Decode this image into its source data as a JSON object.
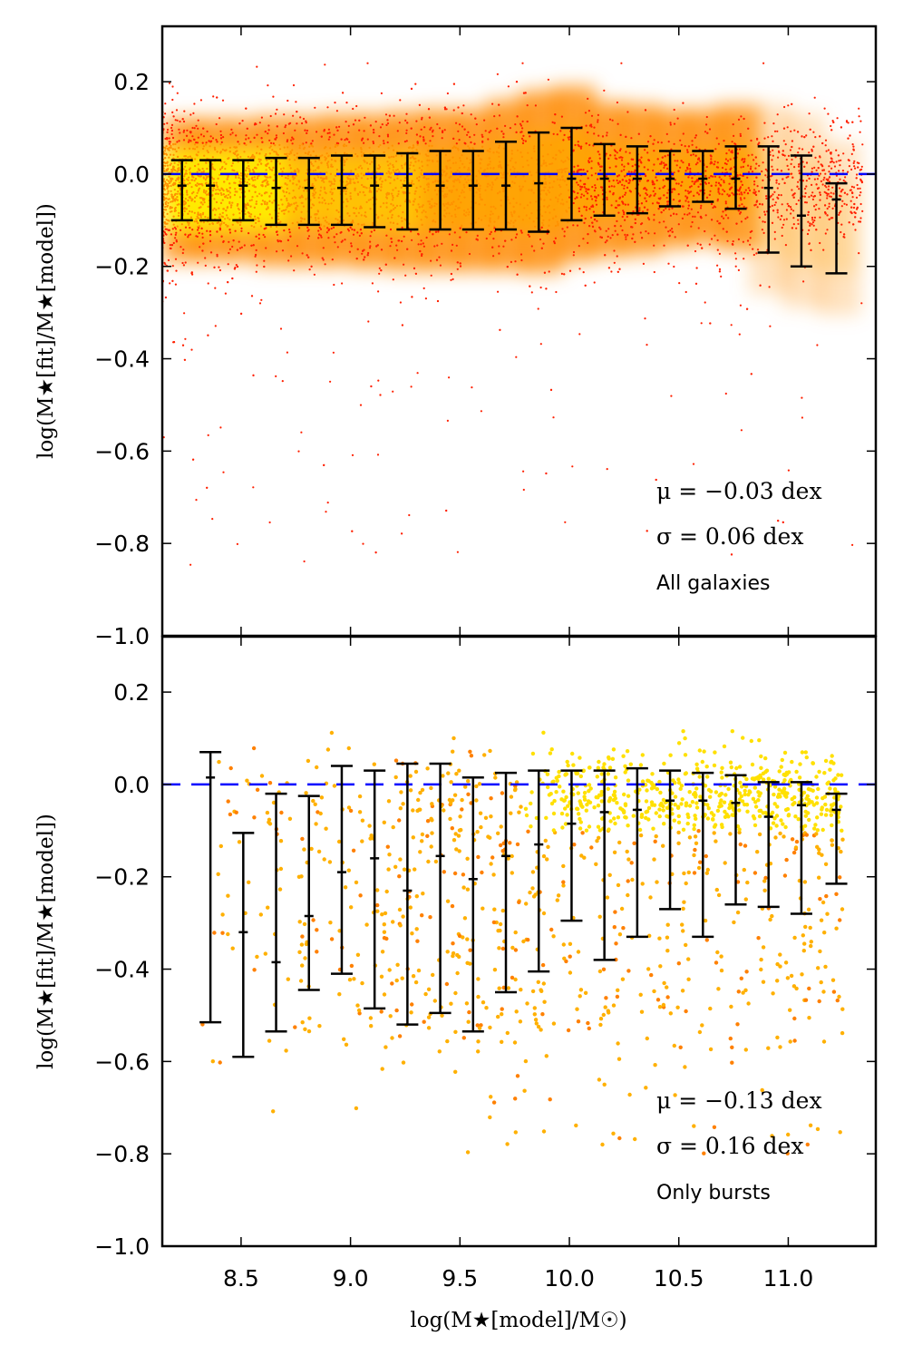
{
  "chart_data": [
    {
      "type": "scatter",
      "panel": "top",
      "xlim": [
        8.14,
        11.4
      ],
      "ylim": [
        -1.0,
        0.32
      ],
      "xticks": [
        "8.5",
        "9.0",
        "9.5",
        "10.0",
        "10.5",
        "11.0"
      ],
      "xtick_values": [
        8.5,
        9.0,
        9.5,
        10.0,
        10.5,
        11.0
      ],
      "yticks": [
        "0.2",
        "0.0",
        "−0.2",
        "−0.4",
        "−0.6",
        "−0.8",
        "−1.0"
      ],
      "ytick_values": [
        0.2,
        0.0,
        -0.2,
        -0.4,
        -0.6,
        -0.8,
        -1.0
      ],
      "ylabel": "log(M★[fit]/M★[model])",
      "grid": false,
      "reference_line_y": 0.0,
      "annotations": [
        "μ = −0.03 dex",
        "σ = 0.06 dex",
        "All galaxies"
      ],
      "errorbars": {
        "x": [
          8.23,
          8.36,
          8.51,
          8.66,
          8.81,
          8.96,
          9.11,
          9.26,
          9.41,
          9.56,
          9.71,
          9.86,
          10.01,
          10.16,
          10.31,
          10.46,
          10.61,
          10.76,
          10.91,
          11.06,
          11.22
        ],
        "y": [
          -0.025,
          -0.025,
          -0.025,
          -0.03,
          -0.03,
          -0.03,
          -0.025,
          -0.025,
          -0.025,
          -0.025,
          -0.025,
          -0.02,
          -0.01,
          -0.01,
          -0.01,
          -0.01,
          -0.01,
          -0.01,
          -0.03,
          -0.09,
          -0.055
        ],
        "lower": [
          -0.1,
          -0.1,
          -0.1,
          -0.11,
          -0.11,
          -0.11,
          -0.115,
          -0.12,
          -0.12,
          -0.12,
          -0.12,
          -0.125,
          -0.1,
          -0.09,
          -0.085,
          -0.07,
          -0.06,
          -0.075,
          -0.17,
          -0.2,
          -0.215
        ],
        "upper": [
          0.03,
          0.03,
          0.03,
          0.035,
          0.035,
          0.04,
          0.04,
          0.045,
          0.05,
          0.05,
          0.07,
          0.09,
          0.1,
          0.065,
          0.06,
          0.05,
          0.05,
          0.06,
          0.06,
          0.04,
          -0.02
        ]
      },
      "colors": {
        "dense": "#ffe000",
        "mid": "#ff9000",
        "sparse": "#ff2000",
        "errorbar": "#000000",
        "reference": "#0000ff"
      }
    },
    {
      "type": "scatter",
      "panel": "bottom",
      "xlim": [
        8.14,
        11.4
      ],
      "ylim": [
        -1.0,
        0.32
      ],
      "xticks": [
        "8.5",
        "9.0",
        "9.5",
        "10.0",
        "10.5",
        "11.0"
      ],
      "xtick_values": [
        8.5,
        9.0,
        9.5,
        10.0,
        10.5,
        11.0
      ],
      "yticks": [
        "0.2",
        "0.0",
        "−0.2",
        "−0.4",
        "−0.6",
        "−0.8",
        "−1.0"
      ],
      "ytick_values": [
        0.2,
        0.0,
        -0.2,
        -0.4,
        -0.6,
        -0.8,
        -1.0
      ],
      "xlabel": "log(M★[model]/M☉)",
      "ylabel": "log(M★[fit]/M★[model])",
      "grid": false,
      "reference_line_y": 0.0,
      "annotations": [
        "μ = −0.13 dex",
        "σ = 0.16 dex",
        "Only bursts"
      ],
      "errorbars": {
        "x": [
          8.36,
          8.51,
          8.66,
          8.81,
          8.96,
          9.11,
          9.26,
          9.41,
          9.56,
          9.71,
          9.86,
          10.01,
          10.16,
          10.31,
          10.46,
          10.61,
          10.76,
          10.91,
          11.06,
          11.22
        ],
        "y": [
          0.015,
          -0.32,
          -0.385,
          -0.285,
          -0.19,
          -0.16,
          -0.23,
          -0.155,
          -0.205,
          -0.155,
          -0.13,
          -0.085,
          -0.06,
          -0.055,
          -0.035,
          -0.035,
          -0.04,
          -0.07,
          -0.045,
          -0.055
        ],
        "lower": [
          -0.515,
          -0.59,
          -0.535,
          -0.445,
          -0.41,
          -0.485,
          -0.52,
          -0.495,
          -0.535,
          -0.45,
          -0.405,
          -0.295,
          -0.38,
          -0.33,
          -0.27,
          -0.33,
          -0.26,
          -0.265,
          -0.28,
          -0.215
        ],
        "upper": [
          0.07,
          -0.105,
          -0.02,
          -0.025,
          0.04,
          0.03,
          0.045,
          0.045,
          0.015,
          0.025,
          0.03,
          0.03,
          0.03,
          0.035,
          0.03,
          0.025,
          0.02,
          0.005,
          0.005,
          -0.02
        ]
      },
      "colors": {
        "dense": "#ffe000",
        "mid": "#ffb000",
        "sparse": "#ff8000",
        "errorbar": "#000000",
        "reference": "#0000ff"
      }
    }
  ]
}
